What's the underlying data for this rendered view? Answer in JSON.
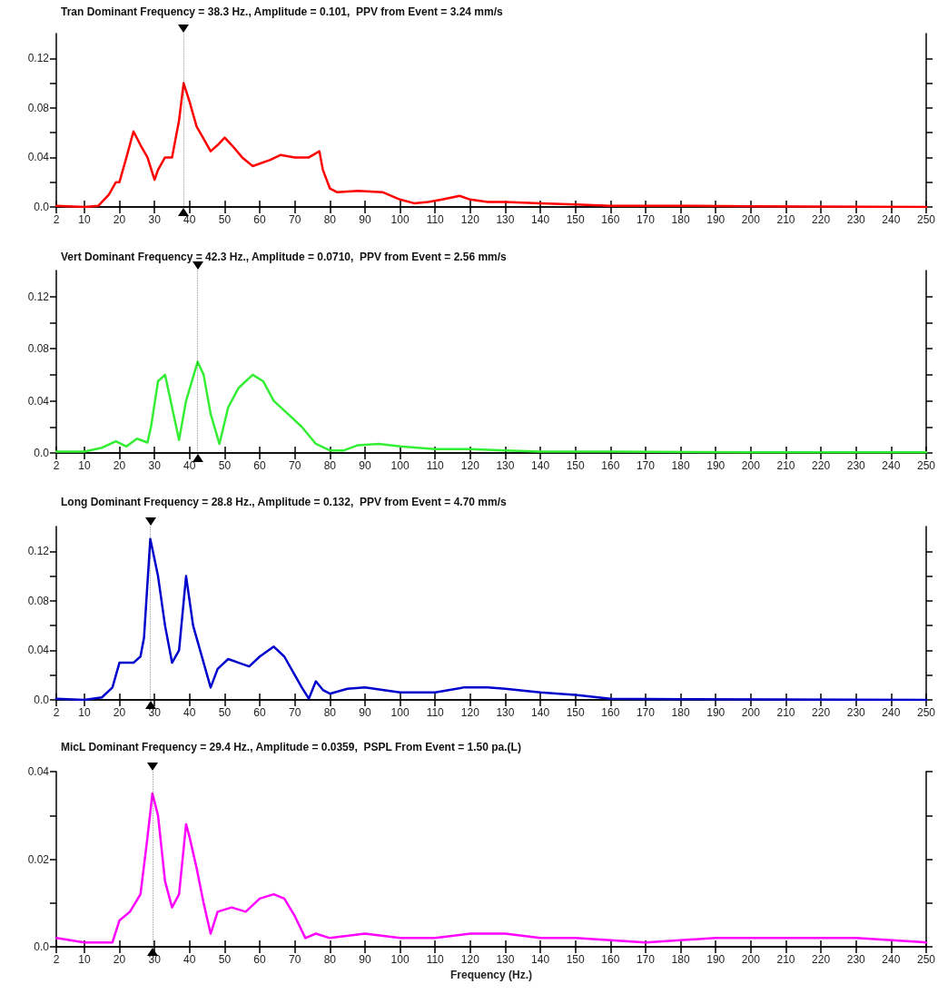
{
  "chart_data": [
    {
      "type": "line",
      "title": "Tran Dominant Frequency = 38.3 Hz., Amplitude = 0.101,  PPV from Event = 3.24 mm/s",
      "x": [
        2,
        10,
        14,
        17,
        19,
        20,
        22,
        24,
        26,
        28,
        30,
        31,
        33,
        35,
        37,
        38.3,
        40,
        42,
        44,
        46,
        48,
        50,
        52,
        55,
        58,
        60,
        63,
        66,
        70,
        74,
        77,
        78,
        80,
        82,
        88,
        95,
        100,
        104,
        108,
        112,
        117,
        120,
        125,
        130,
        140,
        150,
        160,
        180,
        200,
        250
      ],
      "series": [
        {
          "color": "#ff0000",
          "values": [
            0.001,
            0.0,
            0.001,
            0.01,
            0.02,
            0.02,
            0.04,
            0.061,
            0.05,
            0.04,
            0.022,
            0.03,
            0.04,
            0.04,
            0.07,
            0.1,
            0.085,
            0.065,
            0.055,
            0.045,
            0.05,
            0.056,
            0.05,
            0.04,
            0.033,
            0.035,
            0.038,
            0.042,
            0.04,
            0.04,
            0.045,
            0.03,
            0.015,
            0.012,
            0.013,
            0.012,
            0.006,
            0.003,
            0.004,
            0.006,
            0.009,
            0.006,
            0.004,
            0.004,
            0.003,
            0.002,
            0.001,
            0.001,
            0.0005,
            0.0
          ]
        }
      ],
      "xlim": [
        2,
        250
      ],
      "xticks": [
        2,
        10,
        20,
        30,
        40,
        50,
        60,
        70,
        80,
        90,
        100,
        110,
        120,
        130,
        140,
        150,
        160,
        170,
        180,
        190,
        200,
        210,
        220,
        230,
        240,
        250
      ],
      "ylim": [
        0,
        0.14
      ],
      "yticks": [
        {
          "value": 0,
          "label": "0.0"
        },
        {
          "value": 0.02,
          "label": null
        },
        0.04,
        {
          "value": 0.06,
          "label": null
        },
        0.08,
        {
          "value": 0.1,
          "label": null
        },
        0.12
      ],
      "ref_lines": [
        {
          "axis": "x",
          "value": 38.3,
          "label": null,
          "color": "#000000"
        }
      ]
    },
    {
      "type": "line",
      "title": "Vert Dominant Frequency = 42.3 Hz., Amplitude = 0.0710,  PPV from Event = 2.56 mm/s",
      "x": [
        2,
        10,
        15,
        19,
        22,
        25,
        28,
        29,
        31,
        33,
        35,
        37,
        39,
        42.3,
        44,
        46,
        48.5,
        51,
        54,
        58,
        61,
        64,
        68,
        72,
        76,
        80,
        84,
        88,
        94,
        100,
        110,
        120,
        130,
        140,
        160,
        200,
        250
      ],
      "series": [
        {
          "color": "#33ee33",
          "values": [
            0.001,
            0.001,
            0.004,
            0.009,
            0.005,
            0.011,
            0.008,
            0.02,
            0.055,
            0.06,
            0.035,
            0.01,
            0.04,
            0.07,
            0.06,
            0.03,
            0.007,
            0.035,
            0.05,
            0.06,
            0.055,
            0.04,
            0.03,
            0.02,
            0.007,
            0.002,
            0.002,
            0.006,
            0.007,
            0.005,
            0.003,
            0.003,
            0.002,
            0.001,
            0.001,
            0.0005,
            0.0005
          ]
        }
      ],
      "xlim": [
        2,
        250
      ],
      "xticks": [
        2,
        10,
        20,
        30,
        40,
        50,
        60,
        70,
        80,
        90,
        100,
        110,
        120,
        130,
        140,
        150,
        160,
        170,
        180,
        190,
        200,
        210,
        220,
        230,
        240,
        250
      ],
      "ylim": [
        0,
        0.14
      ],
      "yticks": [
        {
          "value": 0,
          "label": "0.0"
        },
        {
          "value": 0.02,
          "label": null
        },
        0.04,
        {
          "value": 0.06,
          "label": null
        },
        0.08,
        {
          "value": 0.1,
          "label": null
        },
        0.12
      ],
      "ref_lines": [
        {
          "axis": "x",
          "value": 42.3,
          "label": null,
          "color": "#000000"
        }
      ]
    },
    {
      "type": "line",
      "title": "Long Dominant Frequency = 28.8 Hz., Amplitude = 0.132,  PPV from Event = 4.70 mm/s",
      "x": [
        2,
        10,
        15,
        18,
        20,
        22,
        24,
        26,
        27,
        28.8,
        31,
        33,
        35,
        37,
        39,
        41,
        43,
        45,
        46,
        48,
        51,
        54,
        57,
        60,
        64,
        67,
        70,
        72,
        74,
        76,
        78,
        80,
        85,
        90,
        100,
        110,
        118,
        125,
        130,
        140,
        150,
        160,
        180,
        250
      ],
      "series": [
        {
          "color": "#0000cc",
          "values": [
            0.001,
            0.0,
            0.002,
            0.01,
            0.03,
            0.03,
            0.03,
            0.035,
            0.05,
            0.13,
            0.1,
            0.06,
            0.03,
            0.04,
            0.1,
            0.06,
            0.04,
            0.02,
            0.01,
            0.025,
            0.033,
            0.03,
            0.027,
            0.035,
            0.043,
            0.035,
            0.02,
            0.01,
            0.001,
            0.015,
            0.008,
            0.005,
            0.009,
            0.01,
            0.006,
            0.006,
            0.01,
            0.01,
            0.009,
            0.006,
            0.004,
            0.001,
            0.0005,
            0.0
          ]
        }
      ],
      "xlim": [
        2,
        250
      ],
      "xticks": [
        2,
        10,
        20,
        30,
        40,
        50,
        60,
        70,
        80,
        90,
        100,
        110,
        120,
        130,
        140,
        150,
        160,
        170,
        180,
        190,
        200,
        210,
        220,
        230,
        240,
        250
      ],
      "ylim": [
        0,
        0.14
      ],
      "yticks": [
        {
          "value": 0,
          "label": "0.0"
        },
        {
          "value": 0.02,
          "label": null
        },
        0.04,
        {
          "value": 0.06,
          "label": null
        },
        0.08,
        {
          "value": 0.1,
          "label": null
        },
        0.12
      ],
      "ref_lines": [
        {
          "axis": "x",
          "value": 28.8,
          "label": null,
          "color": "#000000"
        }
      ]
    },
    {
      "type": "line",
      "title": "MicL Dominant Frequency = 29.4 Hz., Amplitude = 0.0359,  PSPL From Event = 1.50 pa.(L)",
      "xlabel": "Frequency (Hz.)",
      "x": [
        2,
        10,
        18,
        20,
        23,
        26,
        28,
        29.4,
        31,
        33,
        35,
        37,
        39,
        40,
        42,
        44,
        46,
        48,
        52,
        56,
        60,
        64,
        67,
        70,
        73,
        76,
        80,
        90,
        100,
        110,
        120,
        130,
        140,
        150,
        170,
        190,
        210,
        230,
        250
      ],
      "series": [
        {
          "color": "#ff00ff",
          "values": [
            0.002,
            0.001,
            0.001,
            0.006,
            0.008,
            0.012,
            0.025,
            0.035,
            0.03,
            0.015,
            0.009,
            0.012,
            0.028,
            0.025,
            0.018,
            0.01,
            0.003,
            0.008,
            0.009,
            0.008,
            0.011,
            0.012,
            0.011,
            0.007,
            0.002,
            0.003,
            0.002,
            0.003,
            0.002,
            0.002,
            0.003,
            0.003,
            0.002,
            0.002,
            0.001,
            0.002,
            0.002,
            0.002,
            0.001
          ]
        }
      ],
      "xlim": [
        2,
        250
      ],
      "xticks": [
        2,
        10,
        20,
        30,
        40,
        50,
        60,
        70,
        80,
        90,
        100,
        110,
        120,
        130,
        140,
        150,
        160,
        170,
        180,
        190,
        200,
        210,
        220,
        230,
        240,
        250
      ],
      "ylim": [
        0,
        0.04
      ],
      "yticks": [
        {
          "value": 0,
          "label": "0.0"
        },
        {
          "value": 0.01,
          "label": null
        },
        0.02,
        {
          "value": 0.03,
          "label": null
        },
        0.04
      ],
      "ref_lines": [
        {
          "axis": "x",
          "value": 29.4,
          "label": null,
          "color": "#000000"
        }
      ]
    }
  ]
}
